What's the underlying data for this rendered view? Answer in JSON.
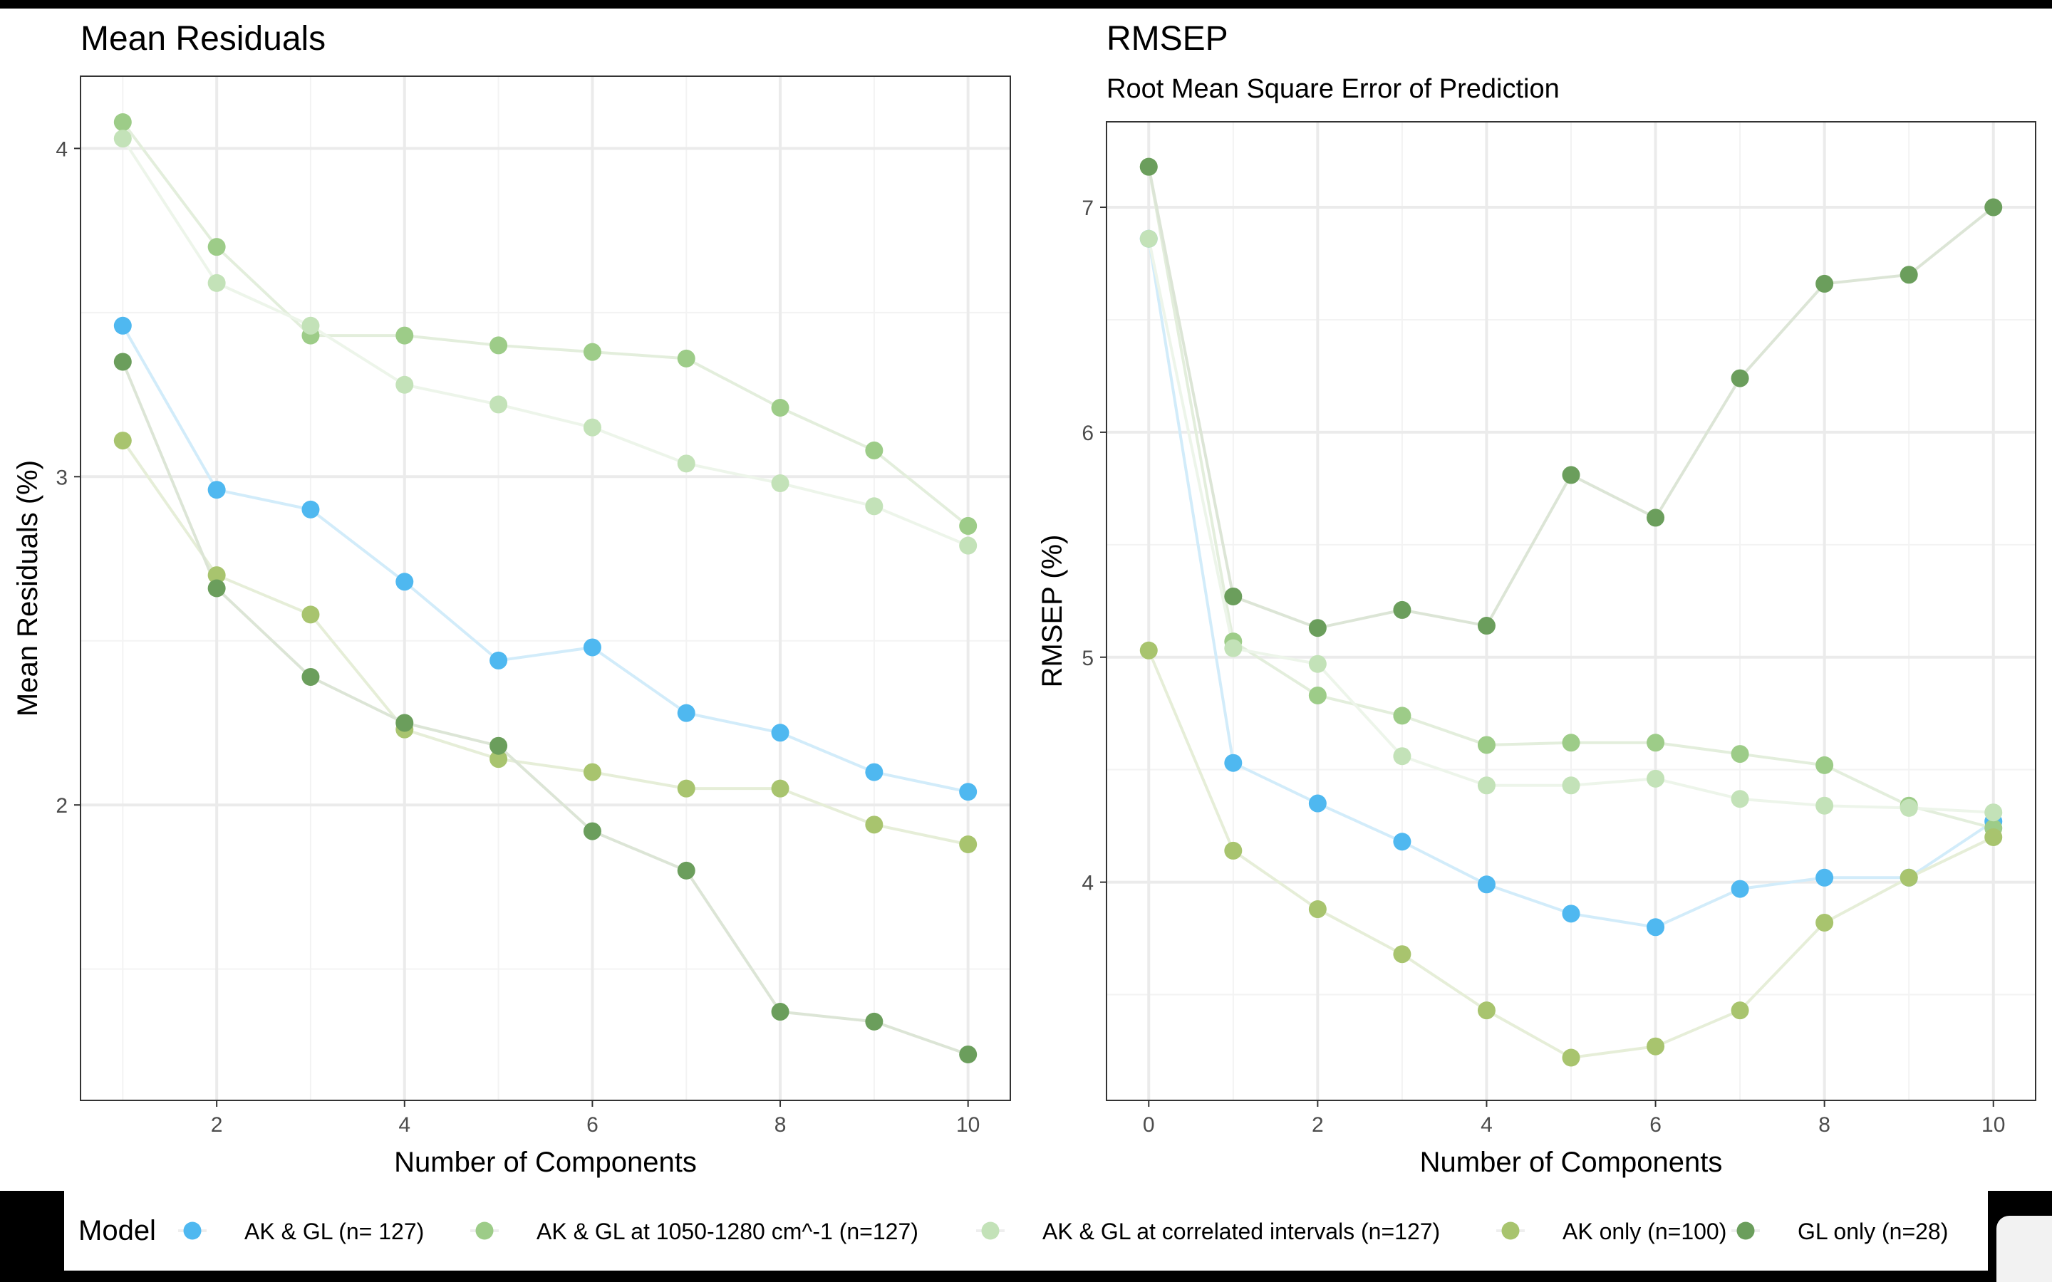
{
  "chart_data": [
    {
      "type": "line",
      "title": "Mean Residuals",
      "subtitle": "",
      "xlabel": "Number of Components",
      "ylabel": "Mean Residuals (%)",
      "x": [
        1,
        2,
        3,
        4,
        5,
        6,
        7,
        8,
        9,
        10
      ],
      "xlim": [
        0.55,
        10.45
      ],
      "ylim": [
        1.1,
        4.22
      ],
      "xticks": [
        2,
        4,
        6,
        8,
        10
      ],
      "yticks": [
        2,
        3,
        4
      ],
      "series": [
        {
          "name": "AK & GL (n= 127)",
          "color": "#4FB8F0",
          "line_color": "#D2ECFA",
          "values": [
            3.46,
            2.96,
            2.9,
            2.68,
            2.44,
            2.48,
            2.28,
            2.22,
            2.1,
            2.04
          ]
        },
        {
          "name": "AK & GL at 1050-1280 cm^-1 (n=127)",
          "color": "#9DCC88",
          "line_color": "#E3EEDC",
          "values": [
            4.08,
            3.7,
            3.43,
            3.43,
            3.4,
            3.38,
            3.36,
            3.21,
            3.08,
            2.85
          ]
        },
        {
          "name": "AK & GL at correlated intervals (n=127)",
          "color": "#C3E2B8",
          "line_color": "#EDF5EA",
          "values": [
            4.03,
            3.59,
            3.46,
            3.28,
            3.22,
            3.15,
            3.04,
            2.98,
            2.91,
            2.79
          ]
        },
        {
          "name": "AK only (n=100)",
          "color": "#A8C46E",
          "line_color": "#E6EED8",
          "values": [
            3.11,
            2.7,
            2.58,
            2.23,
            2.14,
            2.1,
            2.05,
            2.05,
            1.94,
            1.88
          ]
        },
        {
          "name": "GL only (n=28)",
          "color": "#6B9E5C",
          "line_color": "#DCE5D6",
          "values": [
            3.35,
            2.66,
            2.39,
            2.25,
            2.18,
            1.92,
            1.8,
            1.37,
            1.34,
            1.24
          ]
        }
      ]
    },
    {
      "type": "line",
      "title": "RMSEP",
      "subtitle": "Root Mean Square Error of Prediction",
      "xlabel": "Number of Components",
      "ylabel": "RMSEP (%)",
      "x": [
        0,
        1,
        2,
        3,
        4,
        5,
        6,
        7,
        8,
        9,
        10
      ],
      "xlim": [
        -0.5,
        10.5
      ],
      "ylim": [
        3.03,
        7.38
      ],
      "xticks": [
        0,
        2,
        4,
        6,
        8,
        10
      ],
      "yticks": [
        4,
        5,
        6,
        7
      ],
      "series": [
        {
          "name": "AK & GL (n= 127)",
          "color": "#4FB8F0",
          "line_color": "#D2ECFA",
          "values": [
            6.86,
            4.53,
            4.35,
            4.18,
            3.99,
            3.86,
            3.8,
            3.97,
            4.02,
            4.02,
            4.27
          ]
        },
        {
          "name": "AK & GL at 1050-1280 cm^-1 (n=127)",
          "color": "#9DCC88",
          "line_color": "#E3EEDC",
          "values": [
            7.18,
            5.07,
            4.83,
            4.74,
            4.61,
            4.62,
            4.62,
            4.57,
            4.52,
            4.34,
            4.24
          ]
        },
        {
          "name": "AK & GL at correlated intervals (n=127)",
          "color": "#C3E2B8",
          "line_color": "#EDF5EA",
          "values": [
            6.86,
            5.04,
            4.97,
            4.56,
            4.43,
            4.43,
            4.46,
            4.37,
            4.34,
            4.33,
            4.31
          ]
        },
        {
          "name": "AK only (n=100)",
          "color": "#A8C46E",
          "line_color": "#E6EED8",
          "values": [
            5.03,
            4.14,
            3.88,
            3.68,
            3.43,
            3.22,
            3.27,
            3.43,
            3.82,
            4.02,
            4.2
          ]
        },
        {
          "name": "GL only (n=28)",
          "color": "#6B9E5C",
          "line_color": "#DCE5D6",
          "values": [
            7.18,
            5.27,
            5.13,
            5.21,
            5.14,
            5.81,
            5.62,
            6.24,
            6.66,
            6.7,
            7.0
          ]
        }
      ]
    }
  ],
  "legend": {
    "title": "Model",
    "position": "bottom",
    "items": [
      {
        "label": "AK & GL (n= 127)",
        "color": "#4FB8F0"
      },
      {
        "label": "AK & GL at 1050-1280 cm^-1 (n=127)",
        "color": "#9DCC88"
      },
      {
        "label": "AK & GL at correlated intervals (n=127)",
        "color": "#C3E2B8"
      },
      {
        "label": "AK only (n=100)",
        "color": "#A8C46E"
      },
      {
        "label": "GL only (n=28)",
        "color": "#6B9E5C"
      }
    ]
  },
  "colors": {
    "grid_major": "#EBEBEB",
    "grid_minor": "#F3F3F3",
    "axis_text": "#4D4D4D",
    "panel_border": "#333333"
  }
}
